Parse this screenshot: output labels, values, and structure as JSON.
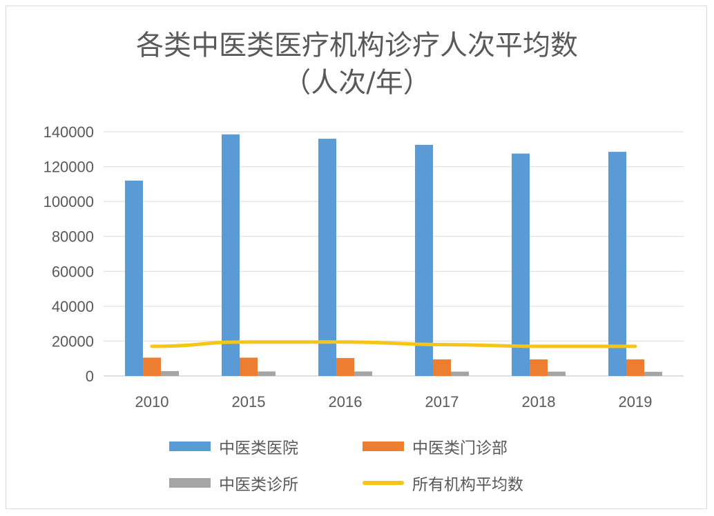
{
  "chart_data": {
    "type": "bar",
    "title": "各类中医类医疗机构诊疗人次平均数",
    "subtitle": "（人次/年）",
    "categories": [
      "2010",
      "2015",
      "2016",
      "2017",
      "2018",
      "2019"
    ],
    "ylim": [
      0,
      140000
    ],
    "yticks": [
      "0",
      "20000",
      "40000",
      "60000",
      "80000",
      "100000",
      "120000",
      "140000"
    ],
    "grid": true,
    "legend_position": "bottom",
    "series": [
      {
        "name": "中医类医院",
        "type": "bar",
        "color": "#5b9bd5",
        "values": [
          112000,
          138500,
          136000,
          132500,
          127500,
          128500
        ]
      },
      {
        "name": "中医类门诊部",
        "type": "bar",
        "color": "#ed7d31",
        "values": [
          10500,
          10500,
          10300,
          9500,
          9500,
          9500
        ]
      },
      {
        "name": "中医类诊所",
        "type": "bar",
        "color": "#a5a5a5",
        "values": [
          2800,
          2600,
          2600,
          2500,
          2500,
          2400
        ]
      },
      {
        "name": "所有机构平均数",
        "type": "line",
        "color": "#f5c518",
        "values": [
          17000,
          19500,
          19500,
          18000,
          17000,
          17000
        ]
      }
    ]
  }
}
